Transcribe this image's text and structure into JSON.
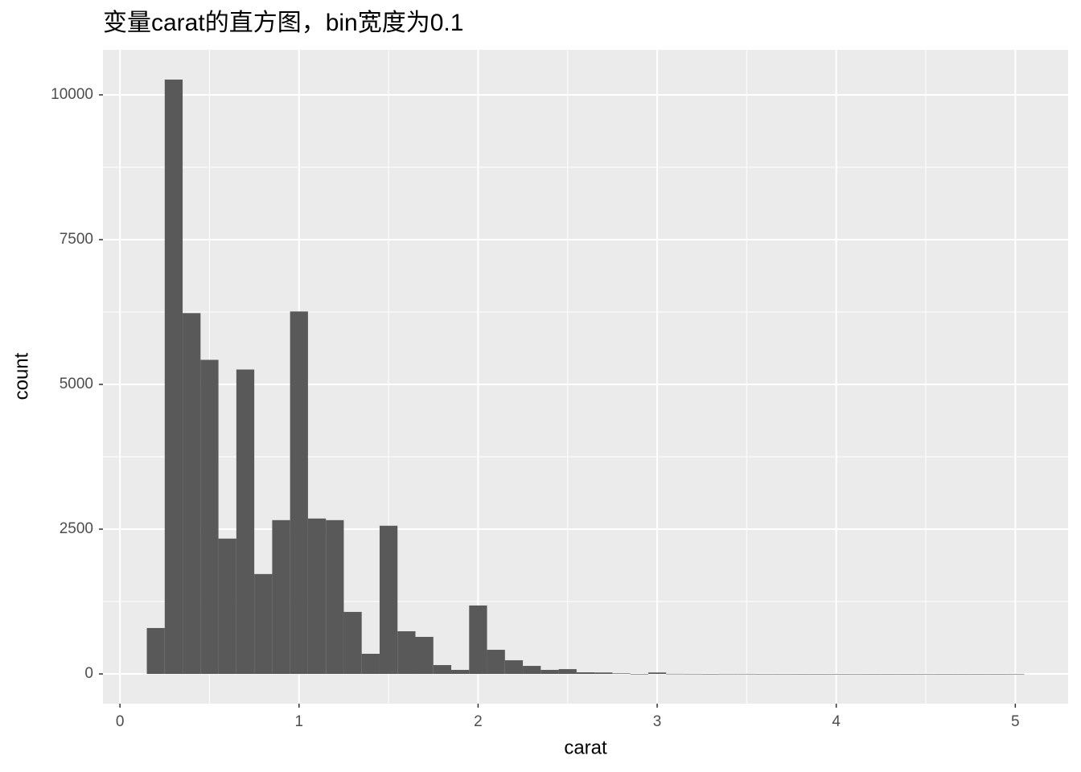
{
  "chart_data": {
    "type": "histogram",
    "title": "变量carat的直方图，bin宽度为0.1",
    "x_label": "carat",
    "y_label": "count",
    "bins": [
      0.15,
      0.25,
      0.35,
      0.45,
      0.55,
      0.65,
      0.75,
      0.85,
      0.95,
      1.05,
      1.15,
      1.25,
      1.35,
      1.45,
      1.55,
      1.65,
      1.75,
      1.85,
      1.95,
      2.05,
      2.15,
      2.25,
      2.35,
      2.45,
      2.55,
      2.65,
      2.75,
      2.85,
      2.95,
      3.05,
      3.15,
      3.25,
      3.35,
      3.45,
      3.55,
      3.65,
      3.75,
      3.85,
      3.95,
      4.05,
      4.15,
      4.25,
      4.35,
      4.45,
      4.55,
      4.65,
      4.75,
      4.85,
      4.95,
      5.05
    ],
    "values": [
      793,
      10264,
      6231,
      5424,
      2337,
      5257,
      1725,
      2656,
      6259,
      2684,
      2656,
      1071,
      348,
      2559,
      737,
      640,
      153,
      70,
      1182,
      417,
      236,
      139,
      70,
      83,
      28,
      25,
      10,
      0,
      25,
      3,
      2,
      0,
      2,
      2,
      1,
      1,
      0,
      0,
      1,
      1,
      0,
      0,
      0,
      1,
      0,
      0,
      0,
      0,
      1
    ],
    "color": "#595959",
    "xlim": [
      -0.095,
      5.295
    ],
    "xticks": [
      0,
      1,
      2,
      3,
      4,
      5
    ],
    "ylim": [
      -513,
      10777
    ],
    "yticks": [
      0,
      2500,
      5000,
      7500,
      10000
    ],
    "grid": true
  }
}
